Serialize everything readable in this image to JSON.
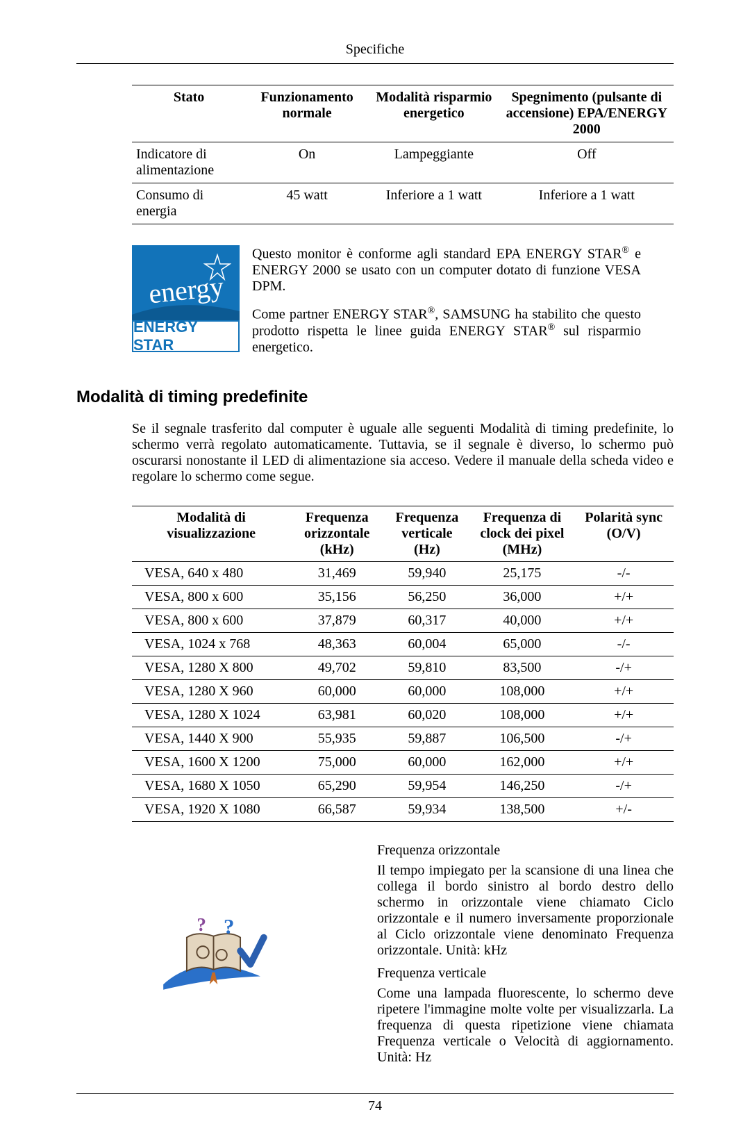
{
  "page": {
    "header": "Specifiche",
    "number": "74"
  },
  "table1": {
    "headers": {
      "stato": "Stato",
      "func": "Funzionamento normale",
      "risp": "Modalità risparmio energetico",
      "speg": "Spegnimento (pulsante di accensione) EPA/ENERGY 2000"
    },
    "rows": [
      {
        "stato": "Indicatore di alimentazione",
        "func": "On",
        "risp": "Lampeggiante",
        "speg": "Off"
      },
      {
        "stato": "Consumo di energia",
        "func": "45 watt",
        "risp": "Inferiore a 1 watt",
        "speg": "Inferiore a 1 watt"
      }
    ]
  },
  "energy_star": {
    "logo_cursive": "energy",
    "logo_label": "ENERGY STAR",
    "para1_a": "Questo monitor è conforme agli standard EPA ENERGY STAR",
    "para1_b": " e ENERGY 2000 se usato con un computer dotato di funzione VESA DPM.",
    "para2_a": "Come partner ENERGY STAR",
    "para2_b": ", SAMSUNG ha stabilito che questo prodotto rispetta le linee guida ENERGY STAR",
    "para2_c": " sul risparmio energetico.",
    "reg": "®"
  },
  "section2": {
    "title": "Modalità di timing predefinite",
    "body": "Se il segnale trasferito dal computer è uguale alle seguenti Modalità di timing predefinite, lo schermo verrà regolato automaticamente. Tuttavia, se il segnale è diverso, lo schermo può oscurarsi nonostante il LED di alimentazione sia acceso. Vedere il manuale della scheda video e regolare lo schermo come segue."
  },
  "table2": {
    "headers": {
      "c1": "Modalità di visualizzazione",
      "c2": "Frequenza orizzontale (kHz)",
      "c3": "Frequenza verticale (Hz)",
      "c4": "Frequenza di clock dei pixel (MHz)",
      "c5": "Polarità sync (O/V)"
    },
    "rows": [
      {
        "c1": "VESA, 640 x 480",
        "c2": "31,469",
        "c3": "59,940",
        "c4": "25,175",
        "c5": "-/-"
      },
      {
        "c1": "VESA, 800 x 600",
        "c2": "35,156",
        "c3": "56,250",
        "c4": "36,000",
        "c5": "+/+"
      },
      {
        "c1": "VESA, 800 x 600",
        "c2": "37,879",
        "c3": "60,317",
        "c4": "40,000",
        "c5": "+/+"
      },
      {
        "c1": "VESA, 1024 x 768",
        "c2": "48,363",
        "c3": "60,004",
        "c4": "65,000",
        "c5": "-/-"
      },
      {
        "c1": "VESA, 1280 X 800",
        "c2": "49,702",
        "c3": "59,810",
        "c4": "83,500",
        "c5": "-/+"
      },
      {
        "c1": "VESA, 1280 X 960",
        "c2": "60,000",
        "c3": "60,000",
        "c4": "108,000",
        "c5": "+/+"
      },
      {
        "c1": "VESA, 1280 X 1024",
        "c2": "63,981",
        "c3": "60,020",
        "c4": "108,000",
        "c5": "+/+"
      },
      {
        "c1": "VESA, 1440 X 900",
        "c2": "55,935",
        "c3": "59,887",
        "c4": "106,500",
        "c5": "-/+"
      },
      {
        "c1": "VESA, 1600 X 1200",
        "c2": "75,000",
        "c3": "60,000",
        "c4": "162,000",
        "c5": "+/+"
      },
      {
        "c1": "VESA, 1680 X 1050",
        "c2": "65,290",
        "c3": "59,954",
        "c4": "146,250",
        "c5": "-/+"
      },
      {
        "c1": "VESA, 1920 X 1080",
        "c2": "66,587",
        "c3": "59,934",
        "c4": "138,500",
        "c5": "+/-"
      }
    ]
  },
  "freq": {
    "h_title": "Frequenza orizzontale",
    "h_body": "Il tempo impiegato per la scansione di una linea che collega il bordo sinistro al bordo destro dello schermo in orizzontale viene chiamato Ciclo orizzontale e il numero inversamente proporzionale al Ciclo orizzontale viene denominato Frequenza orizzontale. Unità: kHz",
    "v_title": "Frequenza verticale",
    "v_body": "Come una lampada fluorescente, lo schermo deve ripetere l'immagine molte volte per visualizzarla. La frequenza di questa ripetizione viene chiamata Frequenza verticale o Velocità di aggiornamento. Unità: Hz"
  },
  "colors": {
    "es_blue": "#1273b9",
    "swoosh": "#2a70c9",
    "gear_fill": "#e4d6bf",
    "check_fill": "#2b5faf"
  }
}
